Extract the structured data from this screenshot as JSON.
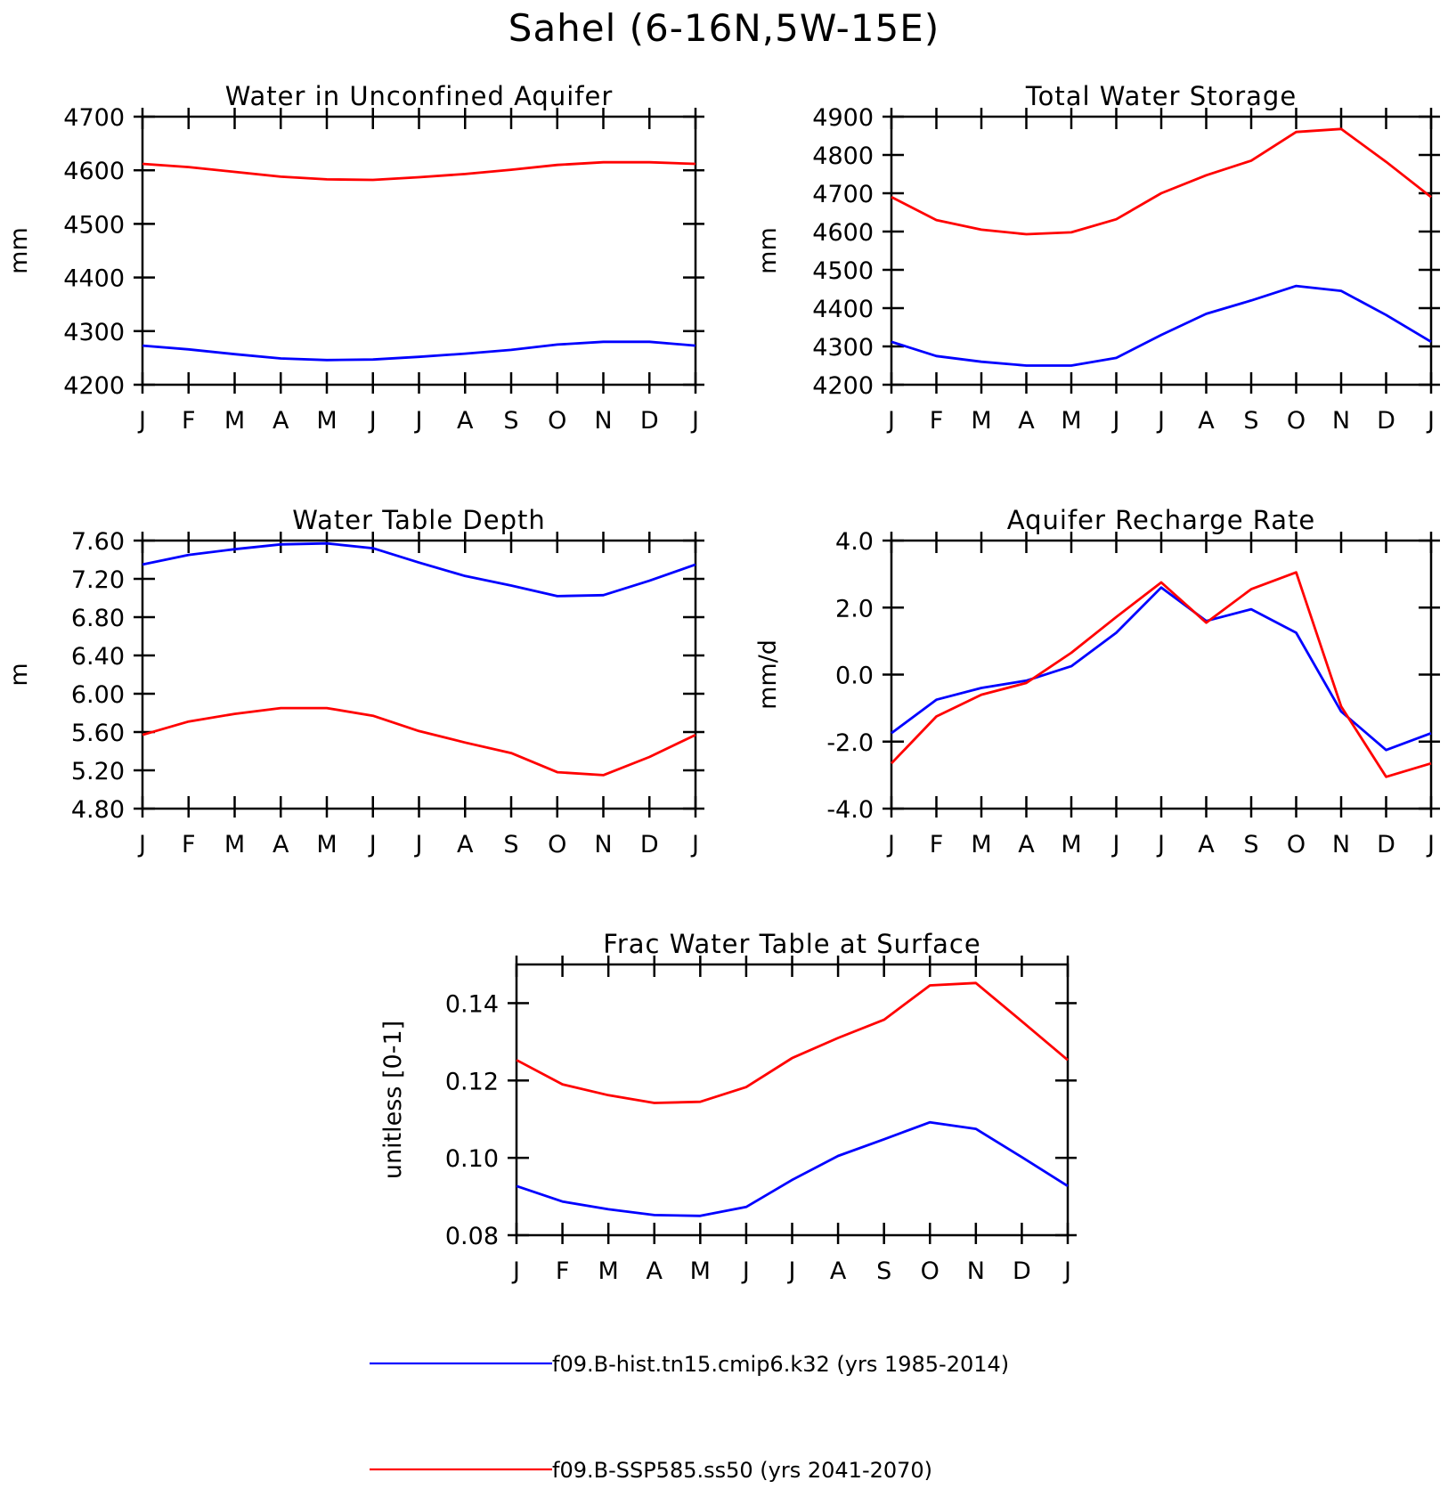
{
  "title": "Sahel (6-16N,5W-15E)",
  "months": [
    "J",
    "F",
    "M",
    "A",
    "M",
    "J",
    "J",
    "A",
    "S",
    "O",
    "N",
    "D",
    "J"
  ],
  "colors": {
    "hist": "#0000ff",
    "ssp": "#ff0000"
  },
  "legend": [
    {
      "label": "f09.B-hist.tn15.cmip6.k32 (yrs 1985-2014)",
      "color": "#0000ff"
    },
    {
      "label": "f09.B-SSP585.ss50 (yrs 2041-2070)",
      "color": "#ff0000"
    }
  ],
  "chart_data": [
    {
      "type": "line",
      "title": "Water in Unconfined Aquifer",
      "ylabel": "mm",
      "xlabel": "",
      "categories": [
        "J",
        "F",
        "M",
        "A",
        "M",
        "J",
        "J",
        "A",
        "S",
        "O",
        "N",
        "D",
        "J"
      ],
      "ylim": [
        4200,
        4700
      ],
      "yticks": [
        4200,
        4300,
        4400,
        4500,
        4600,
        4700
      ],
      "ytick_labels": [
        "4200",
        "4300",
        "4400",
        "4500",
        "4600",
        "4700"
      ],
      "series": [
        {
          "values": [
            4273,
            4266,
            4257,
            4249,
            4246,
            4247,
            4252,
            4258,
            4265,
            4275,
            4280,
            4280,
            4273
          ],
          "color": "#0000ff"
        },
        {
          "values": [
            4612,
            4606,
            4597,
            4588,
            4583,
            4582,
            4587,
            4593,
            4601,
            4610,
            4615,
            4615,
            4612
          ],
          "color": "#ff0000"
        }
      ]
    },
    {
      "type": "line",
      "title": "Total Water Storage",
      "ylabel": "mm",
      "xlabel": "",
      "categories": [
        "J",
        "F",
        "M",
        "A",
        "M",
        "J",
        "J",
        "A",
        "S",
        "O",
        "N",
        "D",
        "J"
      ],
      "ylim": [
        4200,
        4900
      ],
      "yticks": [
        4200,
        4300,
        4400,
        4500,
        4600,
        4700,
        4800,
        4900
      ],
      "ytick_labels": [
        "4200",
        "4300",
        "4400",
        "4500",
        "4600",
        "4700",
        "4800",
        "4900"
      ],
      "series": [
        {
          "values": [
            4312,
            4275,
            4260,
            4250,
            4250,
            4270,
            4330,
            4385,
            4420,
            4458,
            4445,
            4382,
            4312
          ],
          "color": "#0000ff"
        },
        {
          "values": [
            4690,
            4630,
            4605,
            4593,
            4598,
            4632,
            4700,
            4747,
            4785,
            4860,
            4868,
            4782,
            4690
          ],
          "color": "#ff0000"
        }
      ]
    },
    {
      "type": "line",
      "title": "Water Table Depth",
      "ylabel": "m",
      "xlabel": "",
      "categories": [
        "J",
        "F",
        "M",
        "A",
        "M",
        "J",
        "J",
        "A",
        "S",
        "O",
        "N",
        "D",
        "J"
      ],
      "ylim": [
        4.8,
        7.6
      ],
      "yticks": [
        4.8,
        5.2,
        5.6,
        6.0,
        6.4,
        6.8,
        7.2,
        7.6
      ],
      "ytick_labels": [
        "4.80",
        "5.20",
        "5.60",
        "6.00",
        "6.40",
        "6.80",
        "7.20",
        "7.60"
      ],
      "series": [
        {
          "values": [
            7.35,
            7.45,
            7.51,
            7.56,
            7.57,
            7.52,
            7.37,
            7.23,
            7.13,
            7.02,
            7.03,
            7.18,
            7.35
          ],
          "color": "#0000ff"
        },
        {
          "values": [
            5.57,
            5.71,
            5.79,
            5.85,
            5.85,
            5.77,
            5.61,
            5.49,
            5.38,
            5.18,
            5.15,
            5.34,
            5.57
          ],
          "color": "#ff0000"
        }
      ]
    },
    {
      "type": "line",
      "title": "Aquifer Recharge Rate",
      "ylabel": "mm/d",
      "xlabel": "",
      "categories": [
        "J",
        "F",
        "M",
        "A",
        "M",
        "J",
        "J",
        "A",
        "S",
        "O",
        "N",
        "D",
        "J"
      ],
      "ylim": [
        -4.0,
        4.0
      ],
      "yticks": [
        -4.0,
        -2.0,
        0.0,
        2.0,
        4.0
      ],
      "ytick_labels": [
        "-4.0",
        "-2.0",
        "0.0",
        "2.0",
        "4.0"
      ],
      "series": [
        {
          "values": [
            -1.75,
            -0.75,
            -0.4,
            -0.18,
            0.25,
            1.25,
            2.6,
            1.6,
            1.95,
            1.25,
            -1.1,
            -2.25,
            -1.75
          ],
          "color": "#0000ff"
        },
        {
          "values": [
            -2.65,
            -1.25,
            -0.6,
            -0.25,
            0.65,
            1.72,
            2.75,
            1.55,
            2.55,
            3.05,
            -0.95,
            -3.05,
            -2.65
          ],
          "color": "#ff0000"
        }
      ]
    },
    {
      "type": "line",
      "title": "Frac Water Table at Surface",
      "ylabel": "unitless [0-1]",
      "xlabel": "",
      "categories": [
        "J",
        "F",
        "M",
        "A",
        "M",
        "J",
        "J",
        "A",
        "S",
        "O",
        "N",
        "D",
        "J"
      ],
      "ylim": [
        0.08,
        0.15
      ],
      "yticks": [
        0.08,
        0.1,
        0.12,
        0.14
      ],
      "ytick_labels": [
        "0.08",
        "0.10",
        "0.12",
        "0.14"
      ],
      "series": [
        {
          "values": [
            0.0927,
            0.0887,
            0.0867,
            0.0852,
            0.085,
            0.0873,
            0.0943,
            0.1005,
            0.1048,
            0.1092,
            0.1075,
            0.1002,
            0.0927
          ],
          "color": "#0000ff"
        },
        {
          "values": [
            0.1253,
            0.119,
            0.1162,
            0.1142,
            0.1145,
            0.1183,
            0.1258,
            0.131,
            0.1357,
            0.1446,
            0.1452,
            0.1353,
            0.1253
          ],
          "color": "#ff0000"
        }
      ]
    }
  ]
}
